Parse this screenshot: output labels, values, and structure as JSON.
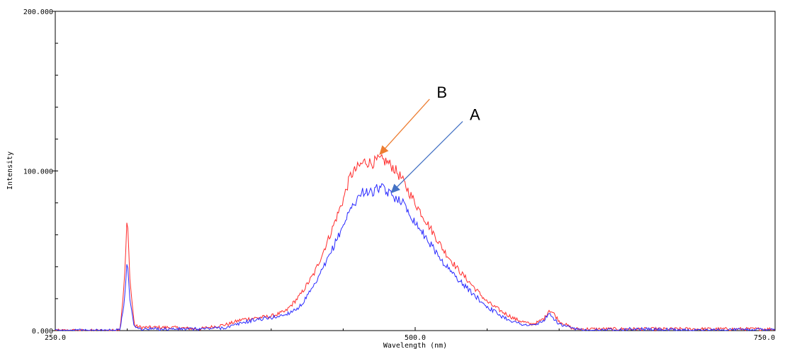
{
  "chart_data": {
    "type": "line",
    "title": "",
    "xlabel": "Wavelength (nm)",
    "ylabel": "Intensity",
    "xlim": [
      250,
      750
    ],
    "ylim": [
      0,
      200
    ],
    "grid": false,
    "x_ticks": [
      250,
      500,
      750
    ],
    "x_tick_labels": [
      "250.0",
      "500.0",
      "750.0"
    ],
    "y_ticks": [
      0,
      100,
      200
    ],
    "y_tick_labels": [
      "0.000",
      "100.000",
      "200.000"
    ],
    "series": [
      {
        "color": "#ff2a2a",
        "points": [
          [
            250,
            0
          ],
          [
            290,
            0
          ],
          [
            295,
            1
          ],
          [
            298,
            30
          ],
          [
            300,
            72
          ],
          [
            302,
            30
          ],
          [
            305,
            3
          ],
          [
            310,
            2
          ],
          [
            330,
            2
          ],
          [
            350,
            1
          ],
          [
            370,
            4
          ],
          [
            380,
            7
          ],
          [
            390,
            8
          ],
          [
            400,
            9
          ],
          [
            410,
            12
          ],
          [
            420,
            22
          ],
          [
            430,
            36
          ],
          [
            440,
            58
          ],
          [
            450,
            82
          ],
          [
            455,
            97
          ],
          [
            460,
            102
          ],
          [
            465,
            106
          ],
          [
            470,
            105
          ],
          [
            475,
            107
          ],
          [
            480,
            106
          ],
          [
            485,
            102
          ],
          [
            490,
            96
          ],
          [
            495,
            88
          ],
          [
            500,
            80
          ],
          [
            510,
            65
          ],
          [
            520,
            50
          ],
          [
            530,
            38
          ],
          [
            540,
            28
          ],
          [
            550,
            18
          ],
          [
            560,
            12
          ],
          [
            570,
            7
          ],
          [
            580,
            4
          ],
          [
            585,
            5
          ],
          [
            590,
            8
          ],
          [
            593,
            13
          ],
          [
            596,
            11
          ],
          [
            600,
            6
          ],
          [
            610,
            1
          ],
          [
            620,
            1
          ],
          [
            650,
            1
          ],
          [
            700,
            1
          ],
          [
            750,
            1
          ]
        ]
      },
      {
        "color": "#2a2aff",
        "points": [
          [
            250,
            0
          ],
          [
            290,
            0
          ],
          [
            295,
            1
          ],
          [
            298,
            18
          ],
          [
            300,
            46
          ],
          [
            302,
            18
          ],
          [
            305,
            2
          ],
          [
            310,
            1
          ],
          [
            330,
            1
          ],
          [
            350,
            1
          ],
          [
            370,
            2
          ],
          [
            380,
            5
          ],
          [
            390,
            7
          ],
          [
            400,
            8
          ],
          [
            410,
            10
          ],
          [
            420,
            15
          ],
          [
            430,
            28
          ],
          [
            440,
            46
          ],
          [
            450,
            66
          ],
          [
            455,
            76
          ],
          [
            460,
            83
          ],
          [
            465,
            88
          ],
          [
            470,
            86
          ],
          [
            475,
            90
          ],
          [
            480,
            87
          ],
          [
            485,
            84
          ],
          [
            490,
            82
          ],
          [
            495,
            75
          ],
          [
            500,
            68
          ],
          [
            510,
            55
          ],
          [
            520,
            42
          ],
          [
            530,
            32
          ],
          [
            540,
            23
          ],
          [
            550,
            15
          ],
          [
            560,
            9
          ],
          [
            570,
            5
          ],
          [
            580,
            3
          ],
          [
            585,
            4
          ],
          [
            590,
            7
          ],
          [
            593,
            10
          ],
          [
            596,
            8
          ],
          [
            600,
            4
          ],
          [
            610,
            1
          ],
          [
            620,
            0
          ],
          [
            650,
            1
          ],
          [
            700,
            0
          ],
          [
            750,
            1
          ]
        ]
      }
    ],
    "annotations": [
      {
        "text": "B",
        "color": "#ed7d31",
        "from": [
          510,
          145
        ],
        "to": [
          475,
          110
        ]
      },
      {
        "text": "A",
        "color": "#4472c4",
        "from": [
          533,
          131
        ],
        "to": [
          483,
          86
        ]
      }
    ]
  }
}
